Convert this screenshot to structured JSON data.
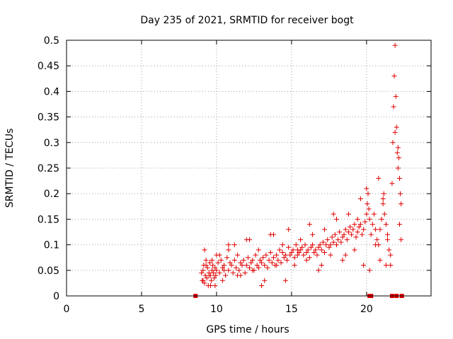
{
  "chart_data": {
    "type": "scatter",
    "title": "Day 235 of 2021, SRMTID for receiver bogt",
    "xlabel": "GPS time / hours",
    "ylabel": "SRMTID / TECUs",
    "xlim": [
      0,
      24.3
    ],
    "ylim": [
      0,
      0.5
    ],
    "xticks": [
      0,
      5,
      10,
      15,
      20
    ],
    "xtick_labels": [
      "0",
      "5",
      "10",
      "15",
      "20"
    ],
    "yticks": [
      0,
      0.05,
      0.1,
      0.15,
      0.2,
      0.25,
      0.3,
      0.35,
      0.4,
      0.45,
      0.5
    ],
    "ytick_labels": [
      "0",
      "0.05",
      "0.1",
      "0.15",
      "0.2",
      "0.25",
      "0.3",
      "0.35",
      "0.4",
      "0.45",
      "0.5"
    ],
    "grid": true,
    "marker": "+",
    "color": "#e00000",
    "points": {
      "x": [
        9.0,
        9.05,
        9.1,
        9.15,
        9.2,
        9.25,
        9.3,
        9.35,
        9.4,
        9.45,
        9.5,
        9.55,
        9.6,
        9.65,
        9.7,
        9.75,
        9.8,
        9.85,
        9.9,
        9.95,
        10.0,
        10.1,
        10.2,
        10.3,
        10.4,
        10.5,
        10.6,
        10.7,
        10.8,
        10.9,
        11.0,
        11.1,
        11.2,
        11.3,
        11.4,
        11.5,
        11.6,
        11.7,
        11.8,
        11.9,
        12.0,
        12.1,
        12.2,
        12.3,
        12.4,
        12.5,
        12.6,
        12.7,
        12.8,
        12.9,
        13.0,
        13.1,
        13.2,
        13.3,
        13.4,
        13.5,
        13.6,
        13.7,
        13.8,
        13.9,
        14.0,
        14.1,
        14.2,
        14.3,
        14.4,
        14.5,
        14.6,
        14.7,
        14.8,
        14.9,
        15.0,
        15.1,
        15.2,
        15.3,
        15.4,
        15.5,
        15.6,
        15.7,
        15.8,
        15.9,
        16.0,
        16.1,
        16.2,
        16.3,
        16.4,
        16.5,
        16.6,
        16.7,
        16.8,
        16.9,
        17.0,
        17.1,
        17.2,
        17.3,
        17.4,
        17.5,
        17.6,
        17.7,
        17.8,
        17.9,
        18.0,
        18.1,
        18.2,
        18.3,
        18.4,
        18.5,
        18.6,
        18.7,
        18.8,
        18.9,
        19.0,
        19.1,
        19.2,
        19.3,
        19.4,
        19.5,
        19.6,
        19.7,
        19.8,
        19.9,
        20.0,
        20.05,
        20.1,
        20.15,
        20.2,
        20.3,
        20.4,
        20.5,
        20.6,
        20.7,
        20.8,
        20.9,
        21.0,
        21.1,
        21.15,
        21.2,
        21.3,
        21.4,
        21.5,
        21.6,
        21.7,
        21.75,
        21.8,
        21.85,
        21.9,
        21.95,
        22.0,
        22.05,
        22.1,
        22.15,
        22.2,
        22.25,
        22.3,
        9.1,
        9.3,
        9.5,
        9.7,
        9.9,
        10.2,
        10.5,
        10.8,
        11.2,
        11.6,
        12.0,
        12.4,
        12.8,
        13.2,
        13.6,
        14.0,
        14.4,
        14.8,
        15.2,
        15.6,
        16.0,
        16.4,
        16.8,
        17.2,
        17.6,
        18.0,
        18.4,
        18.8,
        19.2,
        19.6,
        19.8,
        20.0,
        20.6,
        20.9,
        21.1,
        21.4,
        21.6,
        21.9,
        22.1,
        22.3,
        9.2,
        9.6,
        10.0,
        10.4,
        10.8,
        11.4,
        12.2,
        13.0,
        13.8,
        14.6,
        15.4,
        16.2,
        17.0,
        17.8,
        18.6,
        19.4,
        20.2,
        20.8,
        21.3,
        22.2
      ],
      "y": [
        0.045,
        0.03,
        0.05,
        0.06,
        0.025,
        0.04,
        0.07,
        0.035,
        0.055,
        0.02,
        0.045,
        0.065,
        0.04,
        0.03,
        0.05,
        0.06,
        0.045,
        0.035,
        0.055,
        0.04,
        0.05,
        0.065,
        0.045,
        0.07,
        0.055,
        0.06,
        0.04,
        0.075,
        0.05,
        0.065,
        0.06,
        0.045,
        0.07,
        0.055,
        0.08,
        0.05,
        0.065,
        0.06,
        0.07,
        0.045,
        0.06,
        0.075,
        0.055,
        0.065,
        0.07,
        0.05,
        0.08,
        0.06,
        0.055,
        0.07,
        0.065,
        0.075,
        0.06,
        0.08,
        0.055,
        0.07,
        0.085,
        0.065,
        0.075,
        0.06,
        0.08,
        0.07,
        0.09,
        0.065,
        0.085,
        0.075,
        0.08,
        0.07,
        0.095,
        0.08,
        0.085,
        0.09,
        0.075,
        0.1,
        0.08,
        0.085,
        0.09,
        0.095,
        0.08,
        0.1,
        0.085,
        0.09,
        0.075,
        0.095,
        0.1,
        0.085,
        0.09,
        0.08,
        0.095,
        0.1,
        0.09,
        0.105,
        0.085,
        0.1,
        0.11,
        0.095,
        0.1,
        0.115,
        0.105,
        0.12,
        0.1,
        0.11,
        0.125,
        0.105,
        0.115,
        0.12,
        0.13,
        0.11,
        0.125,
        0.135,
        0.12,
        0.13,
        0.14,
        0.115,
        0.125,
        0.135,
        0.14,
        0.12,
        0.13,
        0.145,
        0.16,
        0.18,
        0.2,
        0.17,
        0.15,
        0.12,
        0.14,
        0.16,
        0.13,
        0.11,
        0.1,
        0.13,
        0.15,
        0.18,
        0.2,
        0.16,
        0.14,
        0.11,
        0.09,
        0.08,
        0.22,
        0.3,
        0.37,
        0.43,
        0.49,
        0.39,
        0.33,
        0.28,
        0.25,
        0.27,
        0.23,
        0.2,
        0.18,
        0.03,
        0.06,
        0.04,
        0.07,
        0.02,
        0.08,
        0.05,
        0.09,
        0.1,
        0.04,
        0.11,
        0.05,
        0.09,
        0.03,
        0.12,
        0.06,
        0.1,
        0.13,
        0.06,
        0.11,
        0.07,
        0.12,
        0.05,
        0.13,
        0.08,
        0.15,
        0.07,
        0.16,
        0.09,
        0.19,
        0.06,
        0.21,
        0.1,
        0.07,
        0.19,
        0.12,
        0.06,
        0.32,
        0.29,
        0.11,
        0.09,
        0.02,
        0.08,
        0.03,
        0.1,
        0.04,
        0.11,
        0.02,
        0.12,
        0.03,
        0.09,
        0.14,
        0.06,
        0.16,
        0.08,
        0.15,
        0.05,
        0.23,
        0.06,
        0.14
      ],
      "zero_x": [
        8.6,
        20.2,
        20.3,
        21.7,
        22.0,
        22.35
      ]
    }
  }
}
